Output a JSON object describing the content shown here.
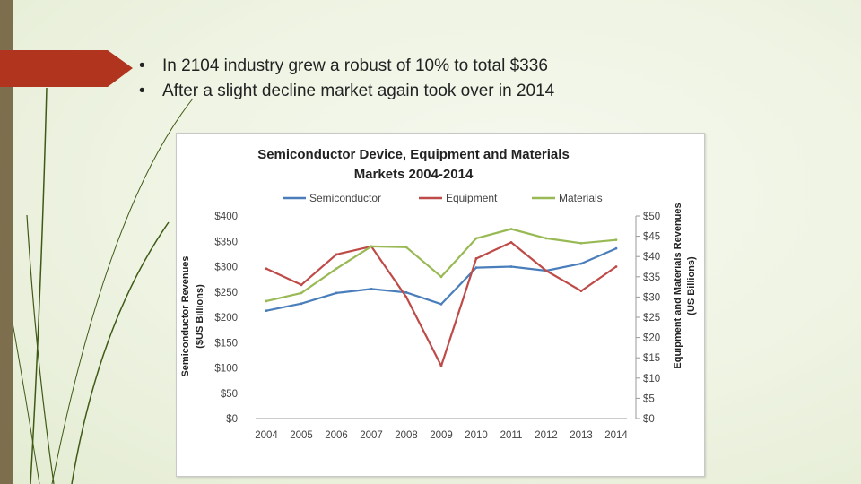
{
  "bullets": [
    "In 2104 industry grew a robust of 10% to total $336",
    "After a slight decline market again took over in 2014"
  ],
  "colors": {
    "semiconductor": "#4a7ebb",
    "equipment": "#be4b48",
    "materials": "#98b954",
    "accent_tab": "#b0341e",
    "side_bar": "#7d6f4e"
  },
  "chart_data": {
    "type": "line",
    "title_line1": "Semiconductor Device, Equipment and Materials",
    "title_line2": "Markets 2004-2014",
    "categories": [
      "2004",
      "2005",
      "2006",
      "2007",
      "2008",
      "2009",
      "2010",
      "2011",
      "2012",
      "2013",
      "2014"
    ],
    "series": [
      {
        "name": "Semiconductor",
        "axis": "left",
        "values": [
          213,
          227,
          248,
          256,
          249,
          226,
          298,
          300,
          292,
          306,
          336
        ]
      },
      {
        "name": "Equipment",
        "axis": "right",
        "values": [
          37,
          33,
          40.5,
          42.5,
          30,
          13,
          39.5,
          43.5,
          36.5,
          31.5,
          37.5
        ]
      },
      {
        "name": "Materials",
        "axis": "right",
        "values": [
          29,
          31,
          37,
          42.5,
          42.3,
          35,
          44.5,
          46.8,
          44.5,
          43.3,
          44.1
        ]
      }
    ],
    "left_axis": {
      "label_line1": "Semiconductor Revenues",
      "label_line2": "($US Billions)",
      "ylim": [
        0,
        400
      ],
      "ticks": [
        "$400",
        "$350",
        "$300",
        "$250",
        "$200",
        "$150",
        "$100",
        "$50",
        "$0"
      ]
    },
    "right_axis": {
      "label_line1": "Equipment and Materials Revenues",
      "label_line2": "(US Billions)",
      "ylim": [
        0,
        50
      ],
      "ticks": [
        "$50",
        "$45",
        "$40",
        "$35",
        "$30",
        "$25",
        "$20",
        "$15",
        "$10",
        "$5",
        "$0"
      ]
    },
    "legend_position": "top",
    "grid": false
  }
}
